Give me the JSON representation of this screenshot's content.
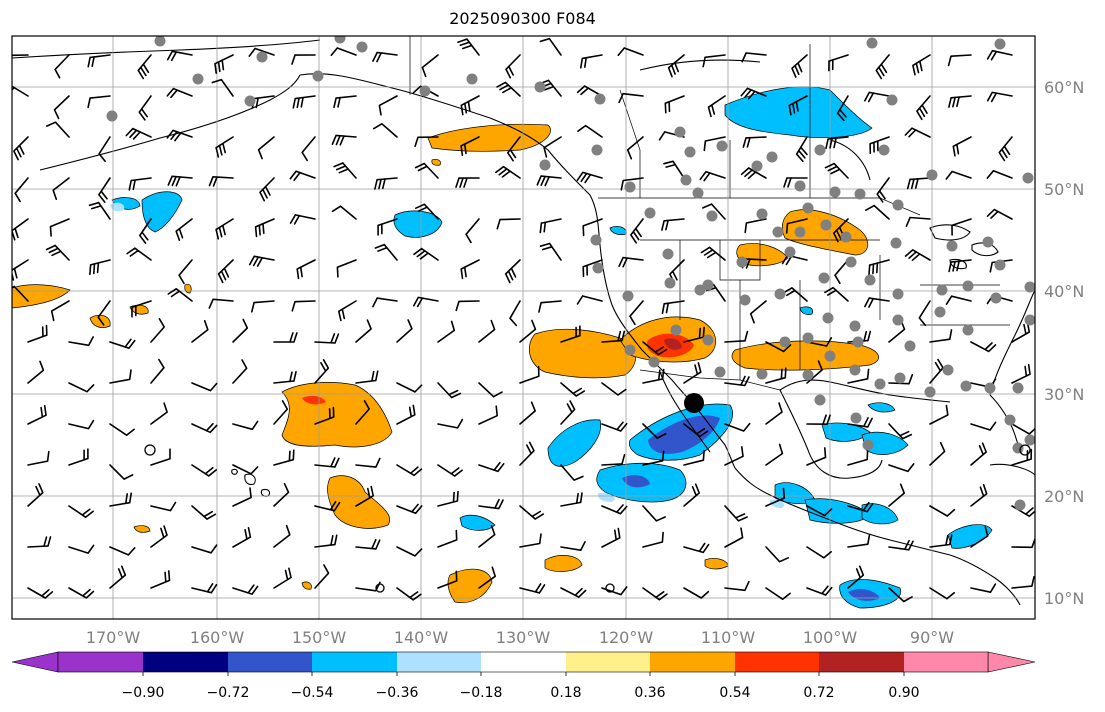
{
  "title": "2025090300 F084",
  "map": {
    "lat_labels": [
      "60°N",
      "50°N",
      "40°N",
      "30°N",
      "20°N",
      "10°N"
    ],
    "lon_labels": [
      "170°W",
      "160°W",
      "150°W",
      "140°W",
      "130°W",
      "120°W",
      "110°W",
      "100°W",
      "90°W"
    ],
    "lat_range": [
      8,
      65
    ],
    "lon_range": [
      -180,
      -80
    ],
    "grid": true,
    "gridline_color": "#9e9e9e"
  },
  "colorbar": {
    "ticks": [
      "−0.90",
      "−0.72",
      "−0.54",
      "−0.36",
      "−0.18",
      "0.18",
      "0.36",
      "0.54",
      "0.72",
      "0.90"
    ],
    "colors": [
      "#9933cc",
      "#000080",
      "#3355cc",
      "#00bfff",
      "#aee0ff",
      "#ffffff",
      "#fff08c",
      "#ffa500",
      "#ff3300",
      "#b22222",
      "#ff88aa"
    ],
    "extend": "both"
  },
  "markers": {
    "station_color": "#808080",
    "highlight_color": "#000000"
  }
}
